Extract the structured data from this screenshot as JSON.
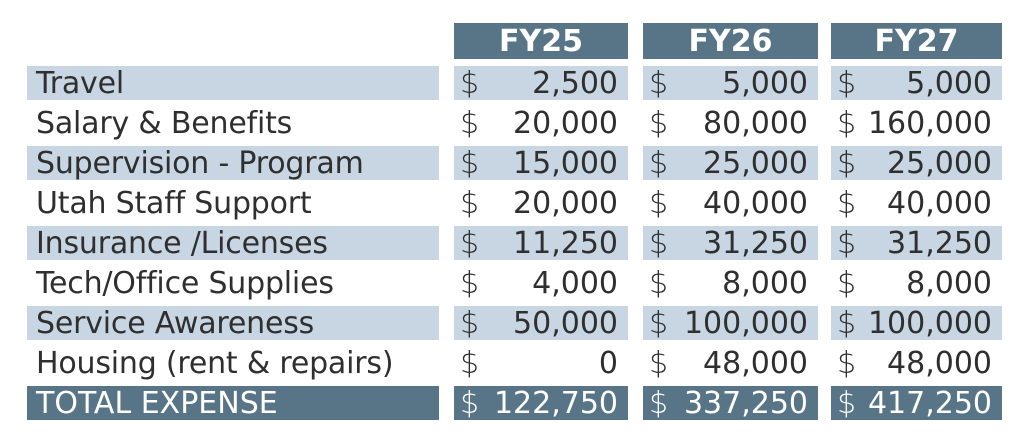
{
  "header": {
    "columns": [
      "FY25",
      "FY26",
      "FY27"
    ]
  },
  "rows": [
    {
      "label": "Travel",
      "values": [
        "2,500",
        "5,000",
        "5,000"
      ]
    },
    {
      "label": "Salary & Benefits",
      "values": [
        "20,000",
        "80,000",
        "160,000"
      ]
    },
    {
      "label": "Supervision - Program",
      "values": [
        "15,000",
        "25,000",
        "25,000"
      ]
    },
    {
      "label": "Utah Staff Support",
      "values": [
        "20,000",
        "40,000",
        "40,000"
      ]
    },
    {
      "label": "Insurance /Licenses",
      "values": [
        "11,250",
        "31,250",
        "31,250"
      ]
    },
    {
      "label": "Tech/Office Supplies",
      "values": [
        "4,000",
        "8,000",
        "8,000"
      ]
    },
    {
      "label": "Service Awareness",
      "values": [
        "50,000",
        "100,000",
        "100,000"
      ]
    },
    {
      "label": "Housing (rent & repairs)",
      "values": [
        "0",
        "48,000",
        "48,000"
      ]
    }
  ],
  "total": {
    "label": "TOTAL EXPENSE",
    "values": [
      "122,750",
      "337,250",
      "417,250"
    ]
  },
  "currency_symbol": "$",
  "colors": {
    "header_fill": "#587487",
    "stripe_fill": "#c7d6e2",
    "text": "#2f2f2f"
  }
}
